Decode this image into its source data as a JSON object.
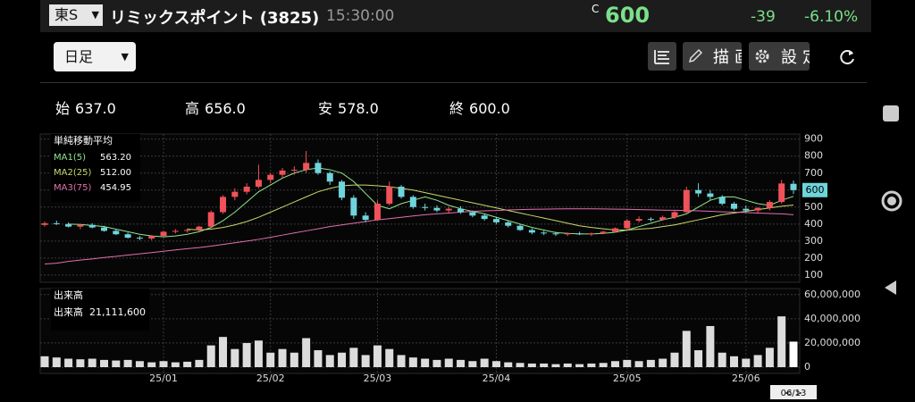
{
  "header": {
    "exchange": "東S",
    "name": "リミックスポイント (3825)",
    "time": "15:30:00",
    "c_mark": "C",
    "price": "600",
    "change": "-39",
    "change_pct": "-6.10%"
  },
  "toolbar": {
    "period": "日足",
    "draw": "描画",
    "settings": "設定"
  },
  "quote": [
    {
      "label": "始",
      "value": "637.0"
    },
    {
      "label": "高",
      "value": "656.0"
    },
    {
      "label": "安",
      "value": "578.0"
    },
    {
      "label": "終",
      "value": "600.0"
    }
  ],
  "chart_data": [
    {
      "type": "candlestick",
      "legend_title": "単純移動平均",
      "up_color": "#f0525a",
      "down_color": "#6fd5dc",
      "grid": true,
      "categories": [
        null,
        null,
        null,
        null,
        null,
        null,
        null,
        null,
        null,
        null,
        "25/01",
        null,
        null,
        null,
        null,
        null,
        null,
        null,
        null,
        "25/02",
        null,
        null,
        null,
        null,
        null,
        null,
        null,
        null,
        "25/03",
        null,
        null,
        null,
        null,
        null,
        null,
        null,
        null,
        null,
        "25/04",
        null,
        null,
        null,
        null,
        null,
        null,
        null,
        null,
        null,
        null,
        "25/05",
        null,
        null,
        null,
        null,
        null,
        null,
        null,
        null,
        null,
        "25/06",
        null,
        null,
        null,
        "06/13"
      ],
      "open": [
        395,
        405,
        400,
        385,
        395,
        380,
        360,
        340,
        320,
        315,
        330,
        355,
        360,
        365,
        385,
        470,
        560,
        590,
        620,
        660,
        690,
        715,
        720,
        760,
        700,
        650,
        555,
        450,
        425,
        520,
        620,
        560,
        500,
        495,
        480,
        490,
        470,
        450,
        430,
        410,
        390,
        365,
        350,
        345,
        340,
        345,
        340,
        345,
        355,
        375,
        420,
        430,
        425,
        440,
        470,
        600,
        580,
        560,
        520,
        490,
        480,
        495,
        530,
        637
      ],
      "high": [
        415,
        420,
        410,
        400,
        405,
        390,
        370,
        350,
        330,
        335,
        360,
        370,
        375,
        390,
        480,
        570,
        610,
        640,
        750,
        700,
        730,
        740,
        830,
        780,
        710,
        660,
        570,
        470,
        540,
        650,
        630,
        570,
        520,
        510,
        500,
        505,
        480,
        460,
        440,
        420,
        400,
        375,
        360,
        355,
        350,
        355,
        350,
        360,
        380,
        430,
        445,
        440,
        450,
        480,
        620,
        640,
        600,
        570,
        530,
        510,
        500,
        540,
        660,
        656
      ],
      "low": [
        385,
        395,
        380,
        370,
        375,
        355,
        335,
        315,
        305,
        305,
        325,
        345,
        350,
        355,
        380,
        460,
        540,
        575,
        610,
        640,
        670,
        690,
        700,
        690,
        630,
        540,
        430,
        410,
        420,
        510,
        550,
        490,
        480,
        470,
        465,
        460,
        440,
        420,
        400,
        380,
        360,
        340,
        335,
        330,
        330,
        335,
        330,
        340,
        350,
        370,
        410,
        415,
        420,
        430,
        465,
        560,
        540,
        510,
        480,
        470,
        460,
        480,
        520,
        578
      ],
      "close": [
        405,
        400,
        385,
        395,
        380,
        360,
        340,
        320,
        315,
        330,
        355,
        360,
        365,
        385,
        470,
        560,
        590,
        620,
        660,
        690,
        715,
        720,
        760,
        700,
        650,
        555,
        450,
        425,
        520,
        620,
        560,
        500,
        495,
        480,
        490,
        470,
        450,
        430,
        410,
        390,
        365,
        350,
        345,
        340,
        345,
        340,
        345,
        355,
        375,
        420,
        430,
        425,
        440,
        470,
        600,
        580,
        560,
        520,
        490,
        480,
        495,
        530,
        639,
        600
      ],
      "series": [
        {
          "name": "MA1(5)",
          "color": "#8fe88f",
          "value_label": "563.20",
          "values": [
            null,
            null,
            400,
            398,
            392,
            385,
            370,
            355,
            340,
            330,
            325,
            330,
            340,
            355,
            380,
            420,
            470,
            530,
            590,
            630,
            670,
            700,
            720,
            730,
            720,
            700,
            650,
            580,
            510,
            490,
            520,
            540,
            560,
            540,
            510,
            490,
            475,
            460,
            440,
            420,
            400,
            380,
            365,
            350,
            345,
            342,
            342,
            345,
            352,
            365,
            385,
            405,
            425,
            440,
            460,
            500,
            540,
            560,
            560,
            540,
            520,
            510,
            540,
            563
          ]
        },
        {
          "name": "MA2(25)",
          "color": "#c9d86a",
          "value_label": "512.00",
          "values": [
            null,
            null,
            null,
            null,
            null,
            null,
            null,
            null,
            null,
            null,
            null,
            null,
            370,
            365,
            370,
            380,
            395,
            415,
            440,
            470,
            500,
            530,
            560,
            590,
            610,
            625,
            630,
            630,
            625,
            620,
            610,
            600,
            585,
            570,
            555,
            540,
            525,
            510,
            495,
            480,
            465,
            450,
            435,
            420,
            405,
            390,
            380,
            372,
            365,
            365,
            370,
            375,
            385,
            395,
            410,
            425,
            440,
            455,
            465,
            475,
            485,
            495,
            505,
            512
          ]
        },
        {
          "name": "MA3(75)",
          "color": "#e070b0",
          "value_label": "454.95",
          "values": [
            165,
            170,
            180,
            188,
            195,
            203,
            210,
            218,
            225,
            232,
            240,
            248,
            255,
            262,
            270,
            280,
            290,
            300,
            310,
            322,
            335,
            348,
            360,
            372,
            385,
            395,
            405,
            415,
            425,
            432,
            440,
            448,
            455,
            460,
            465,
            470,
            475,
            478,
            480,
            483,
            485,
            487,
            488,
            489,
            490,
            490,
            490,
            489,
            488,
            487,
            485,
            484,
            482,
            481,
            480,
            478,
            475,
            472,
            470,
            468,
            465,
            462,
            460,
            455
          ]
        }
      ],
      "ylim": [
        60,
        930
      ],
      "yticks": [
        100,
        200,
        300,
        400,
        500,
        600,
        700,
        800,
        900
      ]
    },
    {
      "type": "bar",
      "title": "出来高",
      "current_name": "出来高",
      "current_label": "21,111,600",
      "color": "#dcdcdc",
      "grid": true,
      "values": [
        9000000,
        8000000,
        7000000,
        6500000,
        7000000,
        6000000,
        5500000,
        6000000,
        5000000,
        4000000,
        5000000,
        4000000,
        4500000,
        6000000,
        18000000,
        25000000,
        15000000,
        20000000,
        22000000,
        12000000,
        15000000,
        12000000,
        24000000,
        14000000,
        10000000,
        12000000,
        16000000,
        10000000,
        18000000,
        15000000,
        10000000,
        8000000,
        7000000,
        6000000,
        7000000,
        6000000,
        5000000,
        7000000,
        5000000,
        4000000,
        3500000,
        3000000,
        3000000,
        2500000,
        3000000,
        2500000,
        3000000,
        3500000,
        5000000,
        6000000,
        5000000,
        6000000,
        7000000,
        12000000,
        30000000,
        14000000,
        34000000,
        12000000,
        9000000,
        7000000,
        10000000,
        16000000,
        42000000,
        21111600
      ],
      "ylim": [
        0,
        65000000
      ],
      "yticks": [
        0,
        {
          "value": 20000000,
          "label": "20,000,000"
        },
        {
          "value": 40000000,
          "label": "40,000,000"
        },
        {
          "value": 60000000,
          "label": "60,000,000"
        }
      ]
    }
  ]
}
